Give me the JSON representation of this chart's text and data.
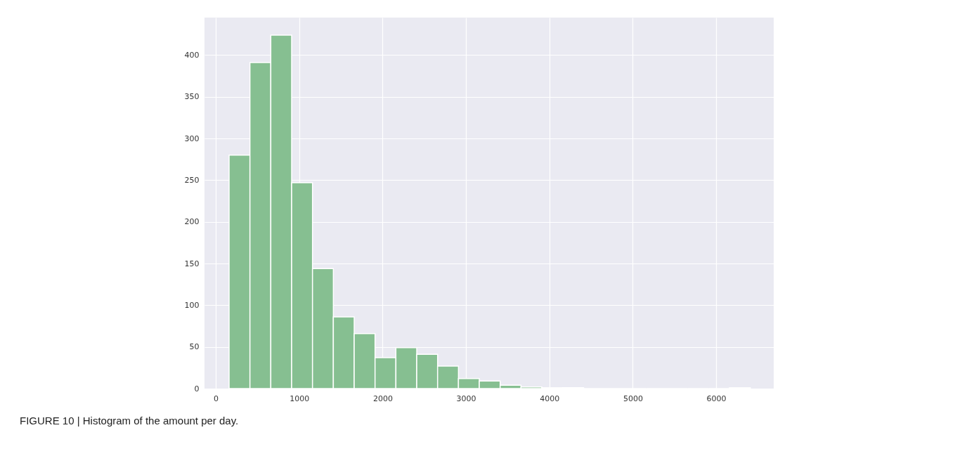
{
  "chart_data": {
    "type": "histogram",
    "bins": [
      160,
      410,
      660,
      910,
      1160,
      1410,
      1660,
      1910,
      2160,
      2410,
      2660,
      2910,
      3160,
      3410,
      3660,
      3910,
      4160,
      4410,
      4660,
      4910,
      5160,
      5410,
      5660,
      5910,
      6160,
      6410
    ],
    "values": [
      280,
      391,
      424,
      247,
      144,
      86,
      66,
      37,
      49,
      41,
      27,
      12,
      9,
      4,
      2,
      1,
      1,
      0,
      0,
      0,
      0,
      0,
      0,
      0,
      1
    ],
    "color": "#86bf91",
    "xlim": [
      -135,
      6690
    ],
    "xticks": [
      0,
      1000,
      2000,
      3000,
      4000,
      5000,
      6000
    ],
    "ylim": [
      0,
      445
    ],
    "yticks": [
      0,
      50,
      100,
      150,
      200,
      250,
      300,
      350,
      400
    ],
    "grid": true,
    "annotations": [
      "FIGURE 10 | Histogram of the amount per day."
    ]
  }
}
